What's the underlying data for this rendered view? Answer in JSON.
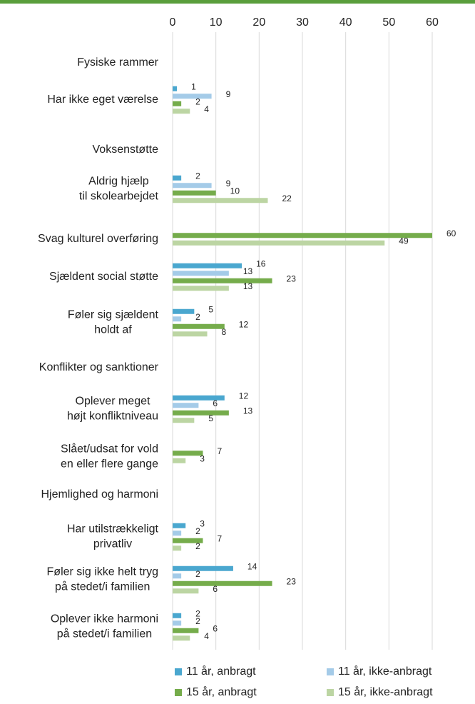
{
  "chart_data": {
    "type": "bar",
    "orientation": "horizontal",
    "categories": [
      "Fysiske rammer",
      "Har ikke eget værelse",
      "Voksenstøtte",
      "Aldrig hjælp\ntil skolearbejdet",
      "Svag  kulturel overføring",
      "Sjældent social støtte",
      "Føler sig sjældent\nholdt af",
      "Konflikter og sanktioner",
      "Oplever meget\nhøjt konfliktniveau",
      "Slået/udsat for vold\nen eller flere gange",
      "Hjemlighed og harmoni",
      "Har utilstrækkeligt\nprivatliv",
      "Føler sig ikke helt tryg\npå stedet/i familien",
      "Oplever ikke harmoni\npå stedet/i familien"
    ],
    "series": [
      {
        "name": "11 år, anbragt",
        "color": "#4aa7cf",
        "values": [
          null,
          1,
          null,
          2,
          null,
          16,
          5,
          null,
          12,
          null,
          null,
          3,
          14,
          2
        ]
      },
      {
        "name": "11 år, ikke-anbragt",
        "color": "#a4cbe8",
        "values": [
          null,
          9,
          null,
          9,
          null,
          13,
          2,
          null,
          6,
          null,
          null,
          2,
          2,
          2
        ]
      },
      {
        "name": "15 år, anbragt",
        "color": "#75ac4b",
        "values": [
          null,
          2,
          null,
          10,
          60,
          23,
          12,
          null,
          13,
          7,
          null,
          7,
          23,
          6
        ]
      },
      {
        "name": "15 år, ikke-anbragt",
        "color": "#bcd5a3",
        "values": [
          null,
          4,
          null,
          22,
          49,
          13,
          8,
          null,
          5,
          3,
          null,
          2,
          6,
          4
        ]
      }
    ],
    "xlim": [
      0,
      60
    ],
    "xticks": [
      0,
      10,
      20,
      30,
      40,
      50,
      60
    ],
    "grid": true
  }
}
